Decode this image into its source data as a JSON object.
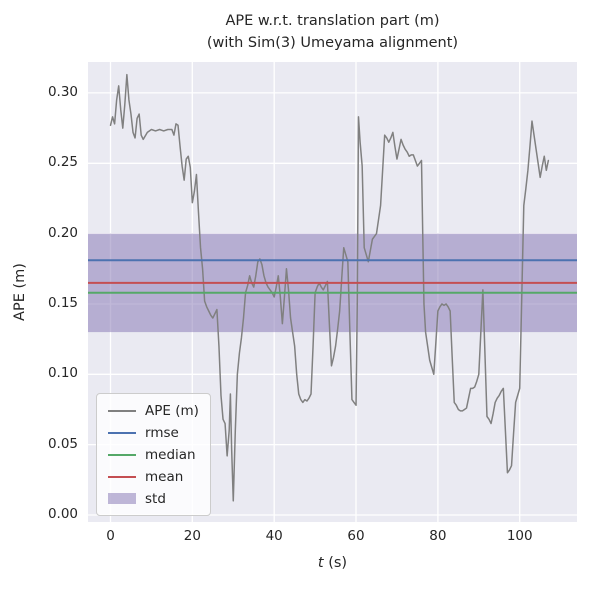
{
  "figure": {
    "title_line1": "APE w.r.t. translation part (m)",
    "title_line2": "(with Sim(3) Umeyama alignment)",
    "xlabel_var": "t",
    "xlabel_unit": " (s)",
    "ylabel": "APE (m)"
  },
  "colors": {
    "axes_background": "#EAEAF2",
    "grid": "#FFFFFF",
    "text": "#262626",
    "ape_line": "#808080",
    "rmse": "#4C72B0",
    "median": "#55A868",
    "mean": "#C44E52",
    "std_band": "#8172B2"
  },
  "chart_data": {
    "type": "line",
    "title": "APE w.r.t. translation part (m) (with Sim(3) Umeyama alignment)",
    "xlabel": "t (s)",
    "ylabel": "APE (m)",
    "xlim": [
      -5.5,
      114.0
    ],
    "ylim": [
      -0.005,
      0.322
    ],
    "grid": true,
    "legend_position": "lower left",
    "xticks": [
      {
        "value": 0,
        "label": "0"
      },
      {
        "value": 20,
        "label": "20"
      },
      {
        "value": 40,
        "label": "40"
      },
      {
        "value": 60,
        "label": "60"
      },
      {
        "value": 80,
        "label": "80"
      },
      {
        "value": 100,
        "label": "100"
      }
    ],
    "yticks": [
      {
        "value": 0.0,
        "label": "0.00"
      },
      {
        "value": 0.05,
        "label": "0.05"
      },
      {
        "value": 0.1,
        "label": "0.10"
      },
      {
        "value": 0.15,
        "label": "0.15"
      },
      {
        "value": 0.2,
        "label": "0.20"
      },
      {
        "value": 0.25,
        "label": "0.25"
      },
      {
        "value": 0.3,
        "label": "0.30"
      }
    ],
    "stat_lines": [
      {
        "label": "rmse",
        "value": 0.181,
        "color_key": "rmse"
      },
      {
        "label": "median",
        "value": 0.158,
        "color_key": "median"
      },
      {
        "label": "mean",
        "value": 0.165,
        "color_key": "mean"
      }
    ],
    "band": {
      "label": "std",
      "low": 0.13,
      "high": 0.2,
      "color_key": "std_band",
      "opacity": 0.5
    },
    "series": [
      {
        "name": "APE (m)",
        "color_key": "ape_line",
        "points": [
          [
            0,
            0.277
          ],
          [
            0.5,
            0.283
          ],
          [
            1,
            0.278
          ],
          [
            1.5,
            0.295
          ],
          [
            2,
            0.305
          ],
          [
            2.5,
            0.288
          ],
          [
            3,
            0.275
          ],
          [
            3.5,
            0.292
          ],
          [
            4,
            0.313
          ],
          [
            4.5,
            0.295
          ],
          [
            5,
            0.285
          ],
          [
            5.5,
            0.272
          ],
          [
            6,
            0.268
          ],
          [
            6.5,
            0.282
          ],
          [
            7,
            0.285
          ],
          [
            7.5,
            0.27
          ],
          [
            8,
            0.267
          ],
          [
            9,
            0.272
          ],
          [
            10,
            0.274
          ],
          [
            11,
            0.273
          ],
          [
            12,
            0.274
          ],
          [
            13,
            0.273
          ],
          [
            14,
            0.274
          ],
          [
            15,
            0.274
          ],
          [
            15.5,
            0.27
          ],
          [
            16,
            0.278
          ],
          [
            16.5,
            0.277
          ],
          [
            17,
            0.262
          ],
          [
            17.5,
            0.248
          ],
          [
            18,
            0.238
          ],
          [
            18.5,
            0.253
          ],
          [
            19,
            0.255
          ],
          [
            19.5,
            0.247
          ],
          [
            20,
            0.222
          ],
          [
            20.5,
            0.23
          ],
          [
            21,
            0.242
          ],
          [
            21.5,
            0.215
          ],
          [
            22,
            0.19
          ],
          [
            22.5,
            0.175
          ],
          [
            23,
            0.152
          ],
          [
            23.5,
            0.148
          ],
          [
            24,
            0.145
          ],
          [
            24.5,
            0.142
          ],
          [
            25,
            0.14
          ],
          [
            25.5,
            0.143
          ],
          [
            26,
            0.146
          ],
          [
            26.5,
            0.12
          ],
          [
            27,
            0.085
          ],
          [
            27.5,
            0.068
          ],
          [
            28,
            0.065
          ],
          [
            28.5,
            0.042
          ],
          [
            29,
            0.06
          ],
          [
            29.3,
            0.086
          ],
          [
            29.6,
            0.047
          ],
          [
            30,
            0.01
          ],
          [
            30.5,
            0.06
          ],
          [
            31,
            0.1
          ],
          [
            31.5,
            0.115
          ],
          [
            32,
            0.126
          ],
          [
            32.5,
            0.14
          ],
          [
            33,
            0.158
          ],
          [
            33.5,
            0.163
          ],
          [
            34,
            0.17
          ],
          [
            34.5,
            0.165
          ],
          [
            35,
            0.162
          ],
          [
            35.5,
            0.17
          ],
          [
            36,
            0.18
          ],
          [
            36.5,
            0.182
          ],
          [
            37,
            0.178
          ],
          [
            37.5,
            0.17
          ],
          [
            38,
            0.165
          ],
          [
            38.5,
            0.162
          ],
          [
            39,
            0.16
          ],
          [
            39.5,
            0.158
          ],
          [
            40,
            0.155
          ],
          [
            40.5,
            0.162
          ],
          [
            41,
            0.17
          ],
          [
            41.5,
            0.155
          ],
          [
            42,
            0.136
          ],
          [
            42.5,
            0.155
          ],
          [
            43,
            0.175
          ],
          [
            43.5,
            0.16
          ],
          [
            44,
            0.14
          ],
          [
            44.5,
            0.13
          ],
          [
            45,
            0.12
          ],
          [
            45.5,
            0.1
          ],
          [
            46,
            0.086
          ],
          [
            46.5,
            0.082
          ],
          [
            47,
            0.08
          ],
          [
            47.5,
            0.082
          ],
          [
            48,
            0.081
          ],
          [
            48.5,
            0.083
          ],
          [
            49,
            0.086
          ],
          [
            49.5,
            0.12
          ],
          [
            50,
            0.158
          ],
          [
            50.5,
            0.162
          ],
          [
            51,
            0.165
          ],
          [
            51.5,
            0.162
          ],
          [
            52,
            0.16
          ],
          [
            52.5,
            0.163
          ],
          [
            53,
            0.166
          ],
          [
            53.5,
            0.135
          ],
          [
            54,
            0.106
          ],
          [
            54.5,
            0.112
          ],
          [
            55,
            0.12
          ],
          [
            55.5,
            0.132
          ],
          [
            56,
            0.145
          ],
          [
            56.5,
            0.168
          ],
          [
            57,
            0.19
          ],
          [
            57.5,
            0.185
          ],
          [
            58,
            0.18
          ],
          [
            58.5,
            0.13
          ],
          [
            59,
            0.082
          ],
          [
            59.5,
            0.08
          ],
          [
            60,
            0.078
          ],
          [
            60.3,
            0.15
          ],
          [
            60.6,
            0.283
          ],
          [
            61,
            0.265
          ],
          [
            61.5,
            0.248
          ],
          [
            62,
            0.19
          ],
          [
            62.5,
            0.185
          ],
          [
            63,
            0.18
          ],
          [
            63.5,
            0.188
          ],
          [
            64,
            0.196
          ],
          [
            64.5,
            0.198
          ],
          [
            65,
            0.2
          ],
          [
            65.5,
            0.21
          ],
          [
            66,
            0.22
          ],
          [
            66.5,
            0.245
          ],
          [
            67,
            0.27
          ],
          [
            67.5,
            0.268
          ],
          [
            68,
            0.265
          ],
          [
            68.5,
            0.268
          ],
          [
            69,
            0.272
          ],
          [
            69.5,
            0.262
          ],
          [
            70,
            0.253
          ],
          [
            70.5,
            0.26
          ],
          [
            71,
            0.267
          ],
          [
            71.5,
            0.263
          ],
          [
            72,
            0.26
          ],
          [
            72.5,
            0.258
          ],
          [
            73,
            0.255
          ],
          [
            73.5,
            0.256
          ],
          [
            74,
            0.256
          ],
          [
            74.5,
            0.252
          ],
          [
            75,
            0.248
          ],
          [
            75.5,
            0.25
          ],
          [
            76,
            0.252
          ],
          [
            76.3,
            0.2
          ],
          [
            76.6,
            0.15
          ],
          [
            77,
            0.13
          ],
          [
            77.5,
            0.12
          ],
          [
            78,
            0.11
          ],
          [
            78.5,
            0.105
          ],
          [
            79,
            0.1
          ],
          [
            79.5,
            0.122
          ],
          [
            80,
            0.145
          ],
          [
            80.5,
            0.148
          ],
          [
            81,
            0.15
          ],
          [
            81.5,
            0.149
          ],
          [
            82,
            0.15
          ],
          [
            82.5,
            0.148
          ],
          [
            83,
            0.145
          ],
          [
            83.5,
            0.112
          ],
          [
            84,
            0.08
          ],
          [
            84.5,
            0.078
          ],
          [
            85,
            0.075
          ],
          [
            85.5,
            0.074
          ],
          [
            86,
            0.074
          ],
          [
            86.5,
            0.075
          ],
          [
            87,
            0.076
          ],
          [
            87.5,
            0.083
          ],
          [
            88,
            0.09
          ],
          [
            88.5,
            0.09
          ],
          [
            89,
            0.091
          ],
          [
            89.5,
            0.095
          ],
          [
            90,
            0.1
          ],
          [
            90.5,
            0.13
          ],
          [
            91,
            0.16
          ],
          [
            91.5,
            0.115
          ],
          [
            92,
            0.07
          ],
          [
            92.5,
            0.068
          ],
          [
            93,
            0.065
          ],
          [
            93.5,
            0.072
          ],
          [
            94,
            0.08
          ],
          [
            94.5,
            0.083
          ],
          [
            95,
            0.085
          ],
          [
            95.5,
            0.088
          ],
          [
            96,
            0.09
          ],
          [
            96.5,
            0.06
          ],
          [
            97,
            0.03
          ],
          [
            97.5,
            0.032
          ],
          [
            98,
            0.035
          ],
          [
            98.5,
            0.058
          ],
          [
            99,
            0.08
          ],
          [
            99.5,
            0.085
          ],
          [
            100,
            0.09
          ],
          [
            100.5,
            0.155
          ],
          [
            101,
            0.22
          ],
          [
            101.5,
            0.232
          ],
          [
            102,
            0.245
          ],
          [
            102.5,
            0.262
          ],
          [
            103,
            0.28
          ],
          [
            103.5,
            0.27
          ],
          [
            104,
            0.26
          ],
          [
            104.5,
            0.25
          ],
          [
            105,
            0.24
          ],
          [
            105.5,
            0.248
          ],
          [
            106,
            0.255
          ],
          [
            106.5,
            0.245
          ],
          [
            107,
            0.252
          ]
        ]
      }
    ]
  }
}
